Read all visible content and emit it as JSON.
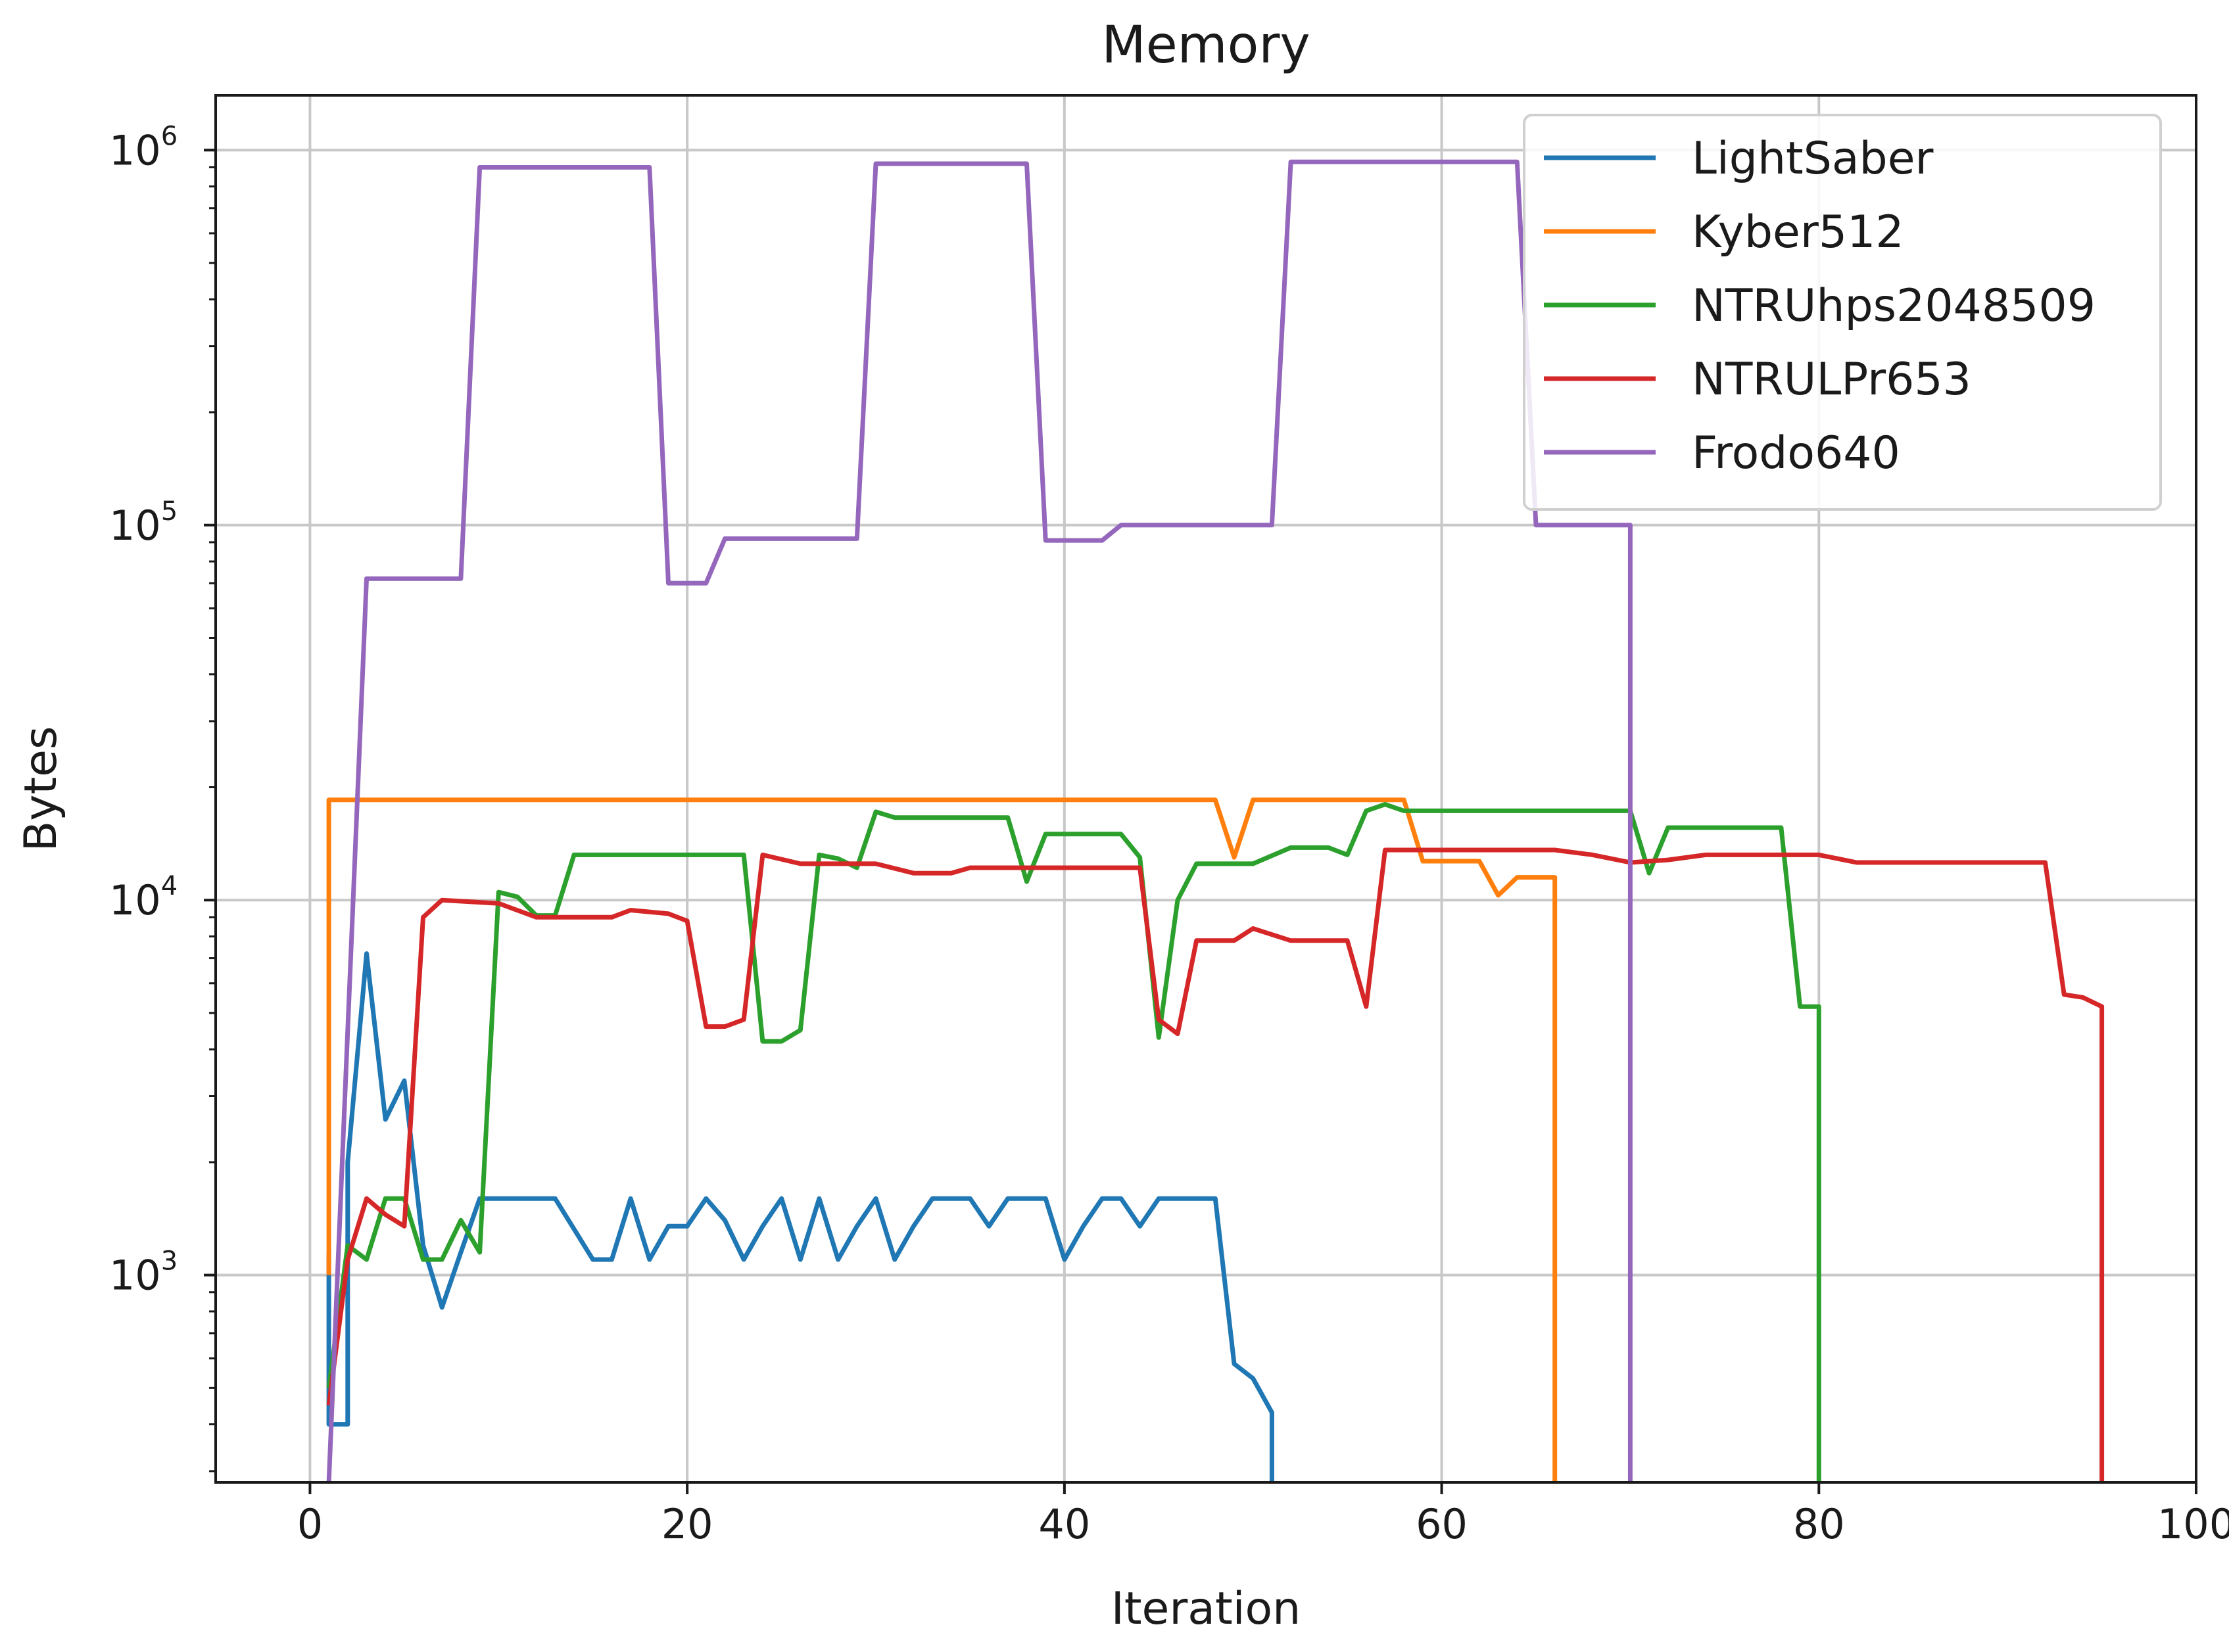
{
  "chart_data": {
    "type": "line",
    "title": "Memory",
    "xlabel": "Iteration",
    "ylabel": "Bytes",
    "xlim": [
      -5,
      100
    ],
    "ylim": [
      280,
      1400000
    ],
    "yscale": "log",
    "grid": true,
    "legend_placement": "top-right",
    "x_ticks": [
      {
        "value": 0,
        "label": "0"
      },
      {
        "value": 20,
        "label": "20"
      },
      {
        "value": 40,
        "label": "40"
      },
      {
        "value": 60,
        "label": "60"
      },
      {
        "value": 80,
        "label": "80"
      },
      {
        "value": 100,
        "label": "100"
      }
    ],
    "y_ticks": [
      {
        "value": 1000,
        "base": "10",
        "exp": "3"
      },
      {
        "value": 10000,
        "base": "10",
        "exp": "4"
      },
      {
        "value": 100000,
        "base": "10",
        "exp": "5"
      },
      {
        "value": 1000000,
        "base": "10",
        "exp": "6"
      }
    ],
    "series": [
      {
        "name": "LightSaber",
        "color": "#1f77b4",
        "points": [
          [
            1,
            1150
          ],
          [
            1,
            400
          ],
          [
            2,
            400
          ],
          [
            2,
            2000
          ],
          [
            3,
            7200
          ],
          [
            4,
            2600
          ],
          [
            5,
            3300
          ],
          [
            6,
            1200
          ],
          [
            7,
            820
          ],
          [
            8,
            1150
          ],
          [
            9,
            1600
          ],
          [
            13,
            1600
          ],
          [
            15,
            1100
          ],
          [
            16,
            1100
          ],
          [
            17,
            1600
          ],
          [
            18,
            1100
          ],
          [
            19,
            1350
          ],
          [
            20,
            1350
          ],
          [
            21,
            1600
          ],
          [
            22,
            1400
          ],
          [
            23,
            1100
          ],
          [
            24,
            1350
          ],
          [
            25,
            1600
          ],
          [
            26,
            1100
          ],
          [
            27,
            1600
          ],
          [
            28,
            1100
          ],
          [
            29,
            1350
          ],
          [
            30,
            1600
          ],
          [
            31,
            1100
          ],
          [
            32,
            1350
          ],
          [
            33,
            1600
          ],
          [
            35,
            1600
          ],
          [
            36,
            1350
          ],
          [
            37,
            1600
          ],
          [
            39,
            1600
          ],
          [
            40,
            1100
          ],
          [
            41,
            1350
          ],
          [
            42,
            1600
          ],
          [
            43,
            1600
          ],
          [
            44,
            1350
          ],
          [
            45,
            1600
          ],
          [
            48,
            1600
          ],
          [
            49,
            580
          ],
          [
            50,
            530
          ],
          [
            51,
            430
          ],
          [
            51,
            280
          ]
        ]
      },
      {
        "name": "Kyber512",
        "color": "#ff7f0e",
        "points": [
          [
            1,
            1000
          ],
          [
            1,
            18500
          ],
          [
            48,
            18500
          ],
          [
            49,
            13000
          ],
          [
            50,
            18500
          ],
          [
            58,
            18500
          ],
          [
            59,
            12700
          ],
          [
            62,
            12700
          ],
          [
            63,
            10300
          ],
          [
            64,
            11500
          ],
          [
            66,
            11500
          ],
          [
            66,
            280
          ]
        ]
      },
      {
        "name": "NTRUhps2048509",
        "color": "#2ca02c",
        "points": [
          [
            1,
            500
          ],
          [
            2,
            1200
          ],
          [
            3,
            1100
          ],
          [
            4,
            1600
          ],
          [
            5,
            1600
          ],
          [
            6,
            1100
          ],
          [
            7,
            1100
          ],
          [
            8,
            1400
          ],
          [
            9,
            1150
          ],
          [
            10,
            10500
          ],
          [
            11,
            10200
          ],
          [
            12,
            9100
          ],
          [
            13,
            9100
          ],
          [
            14,
            13200
          ],
          [
            23,
            13200
          ],
          [
            24,
            4200
          ],
          [
            25,
            4200
          ],
          [
            26,
            4500
          ],
          [
            27,
            13200
          ],
          [
            28,
            12900
          ],
          [
            29,
            12200
          ],
          [
            30,
            17200
          ],
          [
            31,
            16600
          ],
          [
            37,
            16600
          ],
          [
            38,
            11200
          ],
          [
            39,
            15000
          ],
          [
            43,
            15000
          ],
          [
            44,
            13000
          ],
          [
            45,
            4300
          ],
          [
            46,
            10000
          ],
          [
            47,
            12500
          ],
          [
            50,
            12500
          ],
          [
            52,
            13800
          ],
          [
            54,
            13800
          ],
          [
            55,
            13200
          ],
          [
            56,
            17300
          ],
          [
            57,
            18000
          ],
          [
            58,
            17300
          ],
          [
            70,
            17300
          ],
          [
            71,
            11800
          ],
          [
            72,
            15600
          ],
          [
            78,
            15600
          ],
          [
            79,
            5200
          ],
          [
            80,
            5200
          ],
          [
            80,
            280
          ]
        ]
      },
      {
        "name": "NTRULPr653",
        "color": "#d62728",
        "points": [
          [
            1,
            450
          ],
          [
            2,
            1100
          ],
          [
            3,
            1600
          ],
          [
            4,
            1450
          ],
          [
            5,
            1350
          ],
          [
            6,
            9000
          ],
          [
            7,
            10000
          ],
          [
            10,
            9800
          ],
          [
            12,
            9000
          ],
          [
            16,
            9000
          ],
          [
            17,
            9400
          ],
          [
            19,
            9200
          ],
          [
            20,
            8800
          ],
          [
            21,
            4600
          ],
          [
            22,
            4600
          ],
          [
            23,
            4800
          ],
          [
            24,
            13200
          ],
          [
            26,
            12500
          ],
          [
            30,
            12500
          ],
          [
            32,
            11800
          ],
          [
            34,
            11800
          ],
          [
            35,
            12200
          ],
          [
            44,
            12200
          ],
          [
            45,
            4800
          ],
          [
            46,
            4400
          ],
          [
            47,
            7800
          ],
          [
            49,
            7800
          ],
          [
            50,
            8400
          ],
          [
            52,
            7800
          ],
          [
            55,
            7800
          ],
          [
            56,
            5200
          ],
          [
            57,
            13600
          ],
          [
            66,
            13600
          ],
          [
            68,
            13200
          ],
          [
            70,
            12600
          ],
          [
            72,
            12800
          ],
          [
            74,
            13200
          ],
          [
            80,
            13200
          ],
          [
            82,
            12600
          ],
          [
            92,
            12600
          ],
          [
            93,
            5600
          ],
          [
            94,
            5500
          ],
          [
            95,
            5200
          ],
          [
            95,
            280
          ]
        ]
      },
      {
        "name": "Frodo640",
        "color": "#9467bd",
        "points": [
          [
            1,
            280
          ],
          [
            3,
            72000
          ],
          [
            8,
            72000
          ],
          [
            9,
            900000
          ],
          [
            18,
            900000
          ],
          [
            19,
            70000
          ],
          [
            21,
            70000
          ],
          [
            22,
            92000
          ],
          [
            29,
            92000
          ],
          [
            30,
            920000
          ],
          [
            38,
            920000
          ],
          [
            39,
            91000
          ],
          [
            42,
            91000
          ],
          [
            43,
            100000
          ],
          [
            51,
            100000
          ],
          [
            52,
            930000
          ],
          [
            64,
            930000
          ],
          [
            65,
            100000
          ],
          [
            70,
            100000
          ],
          [
            70,
            280
          ]
        ]
      }
    ]
  }
}
